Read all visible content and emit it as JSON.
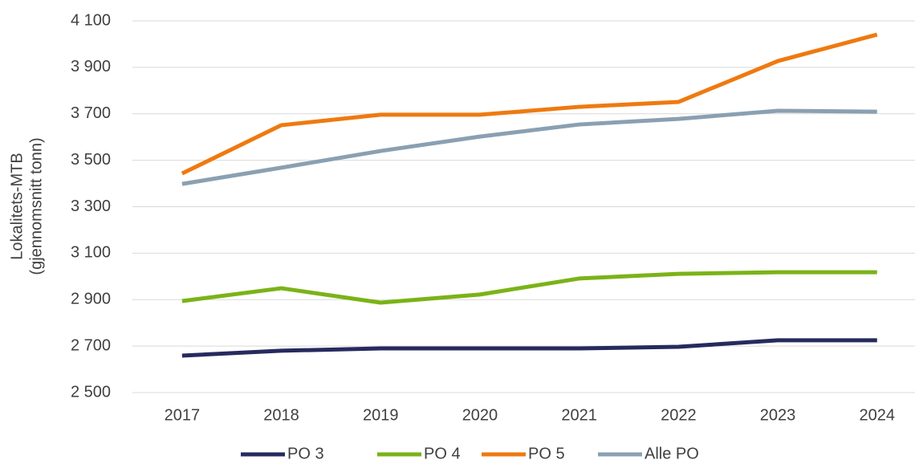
{
  "chart_data": {
    "type": "line",
    "ylabel": [
      "Lokalitets-MTB",
      "(gjennomsnitt tonn)"
    ],
    "categories": [
      "2017",
      "2018",
      "2019",
      "2020",
      "2021",
      "2022",
      "2023",
      "2024"
    ],
    "series": [
      {
        "name": "PO 3",
        "color": "#262a5e",
        "values": [
          2659,
          2680,
          2690,
          2690,
          2690,
          2697,
          2725,
          2725
        ]
      },
      {
        "name": "PO 4",
        "color": "#7ab317",
        "values": [
          2894,
          2949,
          2887,
          2922,
          2991,
          3011,
          3018,
          3018
        ]
      },
      {
        "name": "PO 5",
        "color": "#ee7a10",
        "values": [
          3443,
          3651,
          3696,
          3696,
          3730,
          3751,
          3927,
          4041
        ]
      },
      {
        "name": "Alle PO",
        "color": "#8aa0b2",
        "values": [
          3398,
          3468,
          3540,
          3602,
          3654,
          3678,
          3713,
          3709
        ]
      }
    ],
    "ylim": [
      2500,
      4100
    ],
    "yticks": [
      {
        "value": 2500,
        "label": "2 500"
      },
      {
        "value": 2700,
        "label": "2 700"
      },
      {
        "value": 2900,
        "label": "2 900"
      },
      {
        "value": 3100,
        "label": "3 100"
      },
      {
        "value": 3300,
        "label": "3 300"
      },
      {
        "value": 3500,
        "label": "3 500"
      },
      {
        "value": 3700,
        "label": "3 700"
      },
      {
        "value": 3900,
        "label": "3 900"
      },
      {
        "value": 4100,
        "label": "4 100"
      }
    ],
    "grid": true,
    "legend": "bottom"
  }
}
